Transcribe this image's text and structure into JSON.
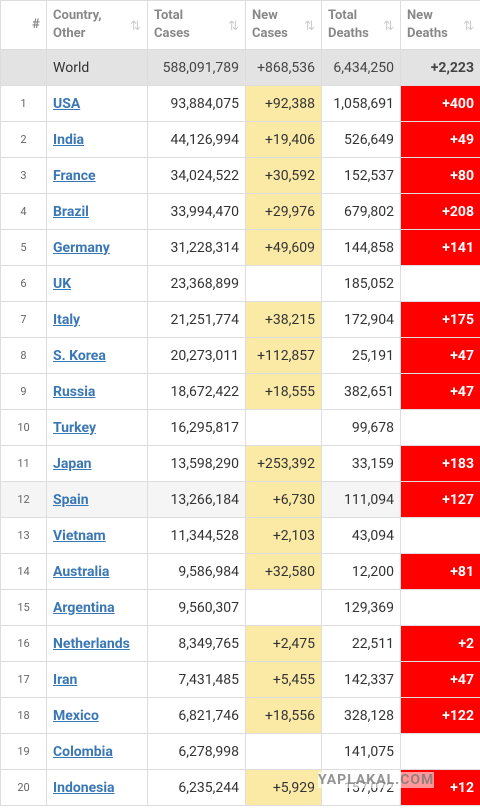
{
  "table": {
    "header": [
      "#",
      "Country, Other",
      "Total Cases",
      "New Cases",
      "Total Deaths",
      "New Deaths"
    ],
    "world": [
      null,
      "World",
      "588,091,789",
      "+868,536",
      "6,434,250",
      "+2,223"
    ],
    "rows": [
      [
        "1",
        "USA",
        "93,884,075",
        "+92,388",
        "1,058,691",
        "+400"
      ],
      [
        "2",
        "India",
        "44,126,994",
        "+19,406",
        "526,649",
        "+49"
      ],
      [
        "3",
        "France",
        "34,024,522",
        "+30,592",
        "152,537",
        "+80"
      ],
      [
        "4",
        "Brazil",
        "33,994,470",
        "+29,976",
        "679,802",
        "+208"
      ],
      [
        "5",
        "Germany",
        "31,228,314",
        "+49,609",
        "144,858",
        "+141"
      ],
      [
        "6",
        "UK",
        "23,368,899",
        null,
        "185,052",
        null
      ],
      [
        "7",
        "Italy",
        "21,251,774",
        "+38,215",
        "172,904",
        "+175"
      ],
      [
        "8",
        "S. Korea",
        "20,273,011",
        "+112,857",
        "25,191",
        "+47"
      ],
      [
        "9",
        "Russia",
        "18,672,422",
        "+18,555",
        "382,651",
        "+47"
      ],
      [
        "10",
        "Turkey",
        "16,295,817",
        null,
        "99,678",
        null
      ],
      [
        "11",
        "Japan",
        "13,598,290",
        "+253,392",
        "33,159",
        "+183"
      ],
      [
        "12",
        "Spain",
        "13,266,184",
        "+6,730",
        "111,094",
        "+127"
      ],
      [
        "13",
        "Vietnam",
        "11,344,528",
        "+2,103",
        "43,094",
        null
      ],
      [
        "14",
        "Australia",
        "9,586,984",
        "+32,580",
        "12,200",
        "+81"
      ],
      [
        "15",
        "Argentina",
        "9,560,307",
        null,
        "129,369",
        null
      ],
      [
        "16",
        "Netherlands",
        "8,349,765",
        "+2,475",
        "22,511",
        "+2"
      ],
      [
        "17",
        "Iran",
        "7,431,485",
        "+5,455",
        "142,337",
        "+47"
      ],
      [
        "18",
        "Mexico",
        "6,821,746",
        "+18,556",
        "328,128",
        "+122"
      ],
      [
        "19",
        "Colombia",
        "6,278,998",
        null,
        "141,075",
        null
      ],
      [
        "20",
        "Indonesia",
        "6,235,244",
        "+5,929",
        "157,072",
        "+12"
      ]
    ]
  },
  "watermark": "YAPLAKAL.COM"
}
